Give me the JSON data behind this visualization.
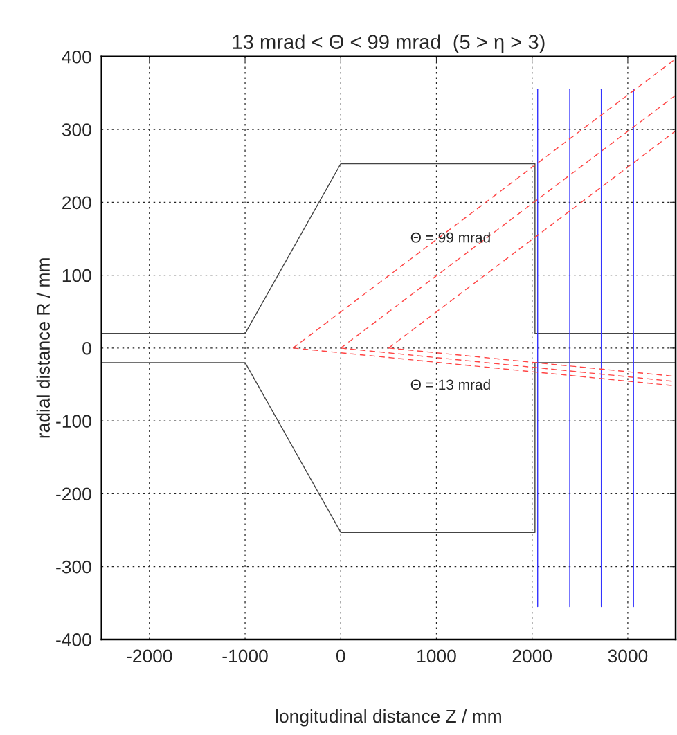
{
  "chart_data": {
    "type": "line",
    "title": "13 mrad < Θ < 99 mrad  (5 > η > 3)",
    "xlabel": "longitudinal distance Z / mm",
    "ylabel": "radial distance R / mm",
    "series": [
      {
        "x": [
          -2500,
          -1000,
          0,
          2030,
          2030,
          3500
        ],
        "values": [
          20,
          20,
          253,
          253,
          20,
          20
        ],
        "color": "#444444",
        "line_style": "solid"
      },
      {
        "x": [
          -2500,
          -1000,
          0,
          2030,
          2030,
          3500
        ],
        "values": [
          -20,
          -20,
          -253,
          -253,
          -20,
          -20
        ],
        "color": "#444444",
        "line_style": "solid"
      },
      {
        "x": [
          2058,
          2058
        ],
        "values": [
          -355,
          355
        ],
        "color": "#3333ff",
        "line_style": "solid"
      },
      {
        "x": [
          2393,
          2393
        ],
        "values": [
          -355,
          355
        ],
        "color": "#3333ff",
        "line_style": "solid"
      },
      {
        "x": [
          2723,
          2723
        ],
        "values": [
          -355,
          355
        ],
        "color": "#3333ff",
        "line_style": "solid"
      },
      {
        "x": [
          3060,
          3060
        ],
        "values": [
          -355,
          355
        ],
        "color": "#3333ff",
        "line_style": "solid"
      },
      {
        "x": [
          -500,
          3500
        ],
        "values": [
          0,
          397
        ],
        "color": "#ff4444",
        "line_style": "dashed"
      },
      {
        "x": [
          0,
          3500
        ],
        "values": [
          0,
          347
        ],
        "color": "#ff4444",
        "line_style": "dashed"
      },
      {
        "x": [
          500,
          3500
        ],
        "values": [
          0,
          298
        ],
        "color": "#ff4444",
        "line_style": "dashed"
      },
      {
        "x": [
          -500,
          3500
        ],
        "values": [
          0,
          -52
        ],
        "color": "#ff4444",
        "line_style": "dashed"
      },
      {
        "x": [
          0,
          3500
        ],
        "values": [
          0,
          -46
        ],
        "color": "#ff4444",
        "line_style": "dashed"
      },
      {
        "x": [
          500,
          3500
        ],
        "values": [
          0,
          -39
        ],
        "color": "#ff4444",
        "line_style": "dashed"
      }
    ],
    "annotations": [
      "Θ = 99 mrad",
      "Θ = 13 mrad"
    ],
    "xlim": [
      -2500,
      3500
    ],
    "ylim": [
      -400,
      400
    ],
    "xticks": [
      -2000,
      -1000,
      0,
      1000,
      2000,
      3000
    ],
    "yticks": [
      -400,
      -300,
      -200,
      -100,
      0,
      100,
      200,
      300,
      400
    ],
    "grid": true,
    "legend": false,
    "marker": "none"
  }
}
